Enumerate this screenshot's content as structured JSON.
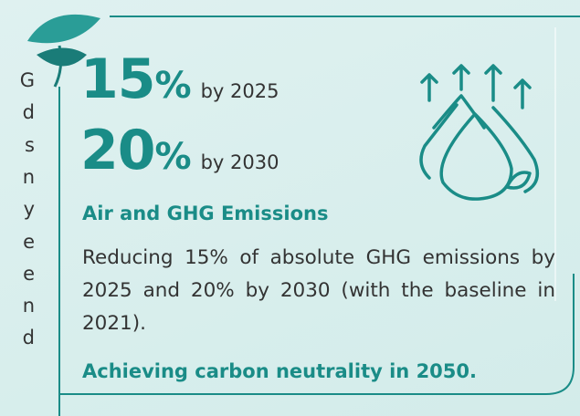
{
  "left_column_fragments": [
    "G",
    "d",
    "s",
    "n",
    "y",
    "e",
    "e",
    "n",
    "d"
  ],
  "targets": [
    {
      "number": "15",
      "unit": "%",
      "label": "by 2025"
    },
    {
      "number": "20",
      "unit": "%",
      "label": "by 2030"
    }
  ],
  "heading": "Air and GHG Emissions",
  "body": "Reducing 15% of absolute GHG emissions by 2025 and 20% by 2030 (with the baseline in 2021).",
  "footer": "Achieving carbon neutrality in 2050."
}
